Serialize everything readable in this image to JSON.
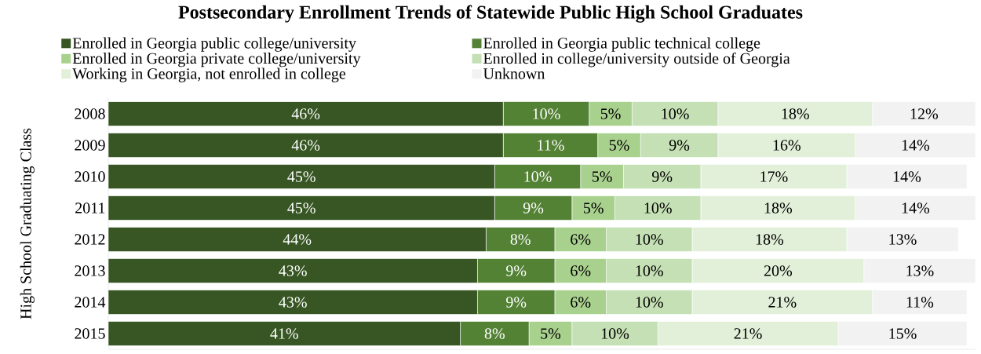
{
  "chart_data": {
    "type": "bar",
    "orientation": "horizontal",
    "stacked": true,
    "title": "Postsecondary Enrollment Trends of Statewide Public High School Graduates",
    "ylabel": "High School Graduating Class",
    "categories": [
      "2008",
      "2009",
      "2010",
      "2011",
      "2012",
      "2013",
      "2014",
      "2015"
    ],
    "legend": "top",
    "grid": false,
    "tick_labels": "y",
    "series": [
      {
        "name": "Enrolled in Georgia public college/university",
        "color": "#375623",
        "values": [
          46,
          46,
          45,
          45,
          44,
          43,
          43,
          41
        ],
        "value_labels": [
          "46%",
          "46%",
          "45%",
          "45%",
          "44%",
          "43%",
          "43%",
          "41%"
        ]
      },
      {
        "name": "Enrolled in Georgia public technical college",
        "color": "#548235",
        "values": [
          10,
          11,
          10,
          9,
          8,
          9,
          9,
          8
        ],
        "value_labels": [
          "10%",
          "11%",
          "10%",
          "9%",
          "8%",
          "9%",
          "9%",
          "8%"
        ]
      },
      {
        "name": "Enrolled in Georgia private college/university",
        "color": "#a9d18e",
        "values": [
          5,
          5,
          5,
          5,
          6,
          6,
          6,
          5
        ],
        "value_labels": [
          "5%",
          "5%",
          "5%",
          "5%",
          "6%",
          "6%",
          "6%",
          "5%"
        ]
      },
      {
        "name": "Enrolled in college/university outside of Georgia",
        "color": "#c5e0b4",
        "values": [
          10,
          9,
          9,
          10,
          10,
          10,
          10,
          10
        ],
        "value_labels": [
          "10%",
          "9%",
          "9%",
          "10%",
          "10%",
          "10%",
          "10%",
          "10%"
        ]
      },
      {
        "name": "Working in Georgia, not enrolled in college",
        "color": "#e2f0d9",
        "values": [
          18,
          16,
          17,
          18,
          18,
          20,
          21,
          21
        ],
        "value_labels": [
          "18%",
          "16%",
          "17%",
          "18%",
          "18%",
          "20%",
          "21%",
          "21%"
        ]
      },
      {
        "name": "Unknown",
        "color": "#f2f2f2",
        "values": [
          12,
          14,
          14,
          14,
          13,
          13,
          11,
          15
        ],
        "value_labels": [
          "12%",
          "14%",
          "14%",
          "14%",
          "13%",
          "13%",
          "11%",
          "15%"
        ]
      }
    ]
  }
}
